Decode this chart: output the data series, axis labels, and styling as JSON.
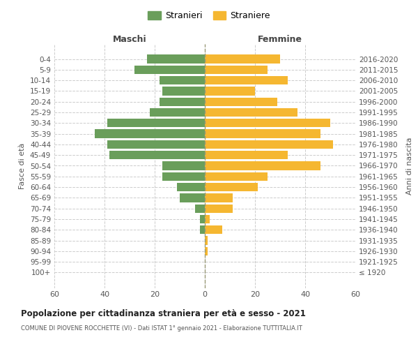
{
  "age_groups": [
    "100+",
    "95-99",
    "90-94",
    "85-89",
    "80-84",
    "75-79",
    "70-74",
    "65-69",
    "60-64",
    "55-59",
    "50-54",
    "45-49",
    "40-44",
    "35-39",
    "30-34",
    "25-29",
    "20-24",
    "15-19",
    "10-14",
    "5-9",
    "0-4"
  ],
  "birth_years": [
    "≤ 1920",
    "1921-1925",
    "1926-1930",
    "1931-1935",
    "1936-1940",
    "1941-1945",
    "1946-1950",
    "1951-1955",
    "1956-1960",
    "1961-1965",
    "1966-1970",
    "1971-1975",
    "1976-1980",
    "1981-1985",
    "1986-1990",
    "1991-1995",
    "1996-2000",
    "2001-2005",
    "2006-2010",
    "2011-2015",
    "2016-2020"
  ],
  "maschi": [
    0,
    0,
    0,
    0,
    2,
    2,
    4,
    10,
    11,
    17,
    17,
    38,
    39,
    44,
    39,
    22,
    18,
    17,
    18,
    28,
    23
  ],
  "femmine": [
    0,
    0,
    1,
    1,
    7,
    2,
    11,
    11,
    21,
    25,
    46,
    33,
    51,
    46,
    50,
    37,
    29,
    20,
    33,
    25,
    30
  ],
  "color_maschi": "#6a9e5b",
  "color_femmine": "#f5b731",
  "xlim": 60,
  "title": "Popolazione per cittadinanza straniera per età e sesso - 2021",
  "subtitle": "COMUNE DI PIOVENE ROCCHETTE (VI) - Dati ISTAT 1° gennaio 2021 - Elaborazione TUTTITALIA.IT",
  "xlabel_left": "Maschi",
  "xlabel_right": "Femmine",
  "ylabel_left": "Fasce di età",
  "ylabel_right": "Anni di nascita",
  "legend_maschi": "Stranieri",
  "legend_femmine": "Straniere",
  "bg_color": "#ffffff",
  "grid_color": "#cccccc",
  "bar_height": 0.8
}
